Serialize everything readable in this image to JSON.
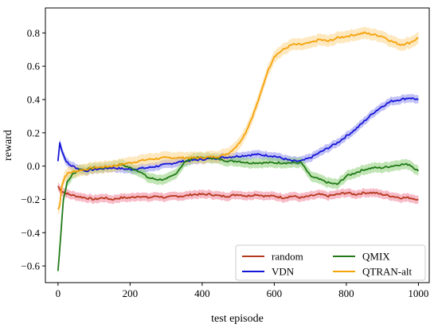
{
  "chart_data": {
    "type": "line",
    "title": "",
    "xlabel": "test episode",
    "ylabel": "reward",
    "xlim": [
      -35,
      1030
    ],
    "ylim": [
      -0.7,
      0.95
    ],
    "xticks": [
      0,
      200,
      400,
      600,
      800,
      1000
    ],
    "xtick_labels": [
      "0",
      "200",
      "400",
      "600",
      "800",
      "1000"
    ],
    "yticks": [
      -0.6,
      -0.4,
      -0.2,
      0.0,
      0.2,
      0.4,
      0.6,
      0.8
    ],
    "ytick_labels": [
      "−0.6",
      "−0.4",
      "−0.2",
      "0.0",
      "0.2",
      "0.4",
      "0.6",
      "0.8"
    ],
    "grid": false,
    "legend_position": "bottom-right",
    "series": [
      {
        "name": "random",
        "color": "#b5381c",
        "band_color": "#f2849a",
        "x": [
          0,
          5,
          10,
          20,
          30,
          50,
          75,
          100,
          125,
          150,
          175,
          200,
          225,
          250,
          275,
          300,
          325,
          350,
          375,
          400,
          425,
          450,
          475,
          500,
          525,
          550,
          575,
          600,
          625,
          650,
          675,
          700,
          725,
          750,
          775,
          800,
          825,
          850,
          875,
          900,
          925,
          950,
          975,
          1000
        ],
        "y": [
          -0.12,
          -0.14,
          -0.15,
          -0.16,
          -0.17,
          -0.18,
          -0.19,
          -0.2,
          -0.19,
          -0.2,
          -0.19,
          -0.19,
          -0.18,
          -0.19,
          -0.18,
          -0.19,
          -0.18,
          -0.18,
          -0.17,
          -0.17,
          -0.17,
          -0.18,
          -0.18,
          -0.17,
          -0.18,
          -0.17,
          -0.18,
          -0.18,
          -0.19,
          -0.18,
          -0.19,
          -0.18,
          -0.17,
          -0.18,
          -0.17,
          -0.16,
          -0.17,
          -0.16,
          -0.16,
          -0.17,
          -0.18,
          -0.19,
          -0.19,
          -0.2
        ],
        "band": 0.025
      },
      {
        "name": "VDN",
        "color": "#1515d8",
        "band_color": "#8f8fef",
        "x": [
          0,
          5,
          10,
          20,
          30,
          50,
          75,
          100,
          150,
          200,
          250,
          300,
          350,
          400,
          450,
          500,
          550,
          600,
          650,
          675,
          700,
          725,
          750,
          775,
          800,
          825,
          850,
          875,
          900,
          925,
          950,
          975,
          1000
        ],
        "y": [
          0.03,
          0.14,
          0.1,
          0.04,
          0.01,
          -0.01,
          -0.03,
          -0.02,
          -0.01,
          -0.02,
          -0.01,
          0.01,
          0.03,
          0.04,
          0.05,
          0.06,
          0.07,
          0.06,
          0.03,
          0.03,
          0.05,
          0.08,
          0.11,
          0.14,
          0.18,
          0.22,
          0.27,
          0.32,
          0.36,
          0.39,
          0.4,
          0.41,
          0.4
        ],
        "band": 0.025
      },
      {
        "name": "QMIX",
        "color": "#217a17",
        "band_color": "#8fd07a",
        "x": [
          0,
          3,
          8,
          15,
          25,
          40,
          60,
          80,
          100,
          125,
          150,
          175,
          200,
          225,
          250,
          275,
          300,
          325,
          350,
          375,
          400,
          425,
          450,
          475,
          500,
          525,
          550,
          575,
          600,
          625,
          650,
          675,
          700,
          725,
          750,
          775,
          800,
          825,
          850,
          875,
          900,
          925,
          950,
          975,
          1000
        ],
        "y": [
          -0.63,
          -0.55,
          -0.4,
          -0.2,
          -0.1,
          -0.05,
          -0.02,
          -0.02,
          -0.01,
          -0.01,
          0.0,
          0.01,
          -0.01,
          -0.03,
          -0.07,
          -0.08,
          -0.08,
          -0.05,
          0.02,
          0.05,
          0.05,
          0.05,
          0.04,
          0.03,
          0.03,
          0.02,
          0.02,
          0.02,
          0.02,
          0.02,
          0.02,
          0.02,
          -0.06,
          -0.08,
          -0.1,
          -0.11,
          -0.06,
          -0.04,
          -0.02,
          -0.01,
          -0.01,
          0.0,
          0.01,
          0.01,
          -0.03
        ],
        "band": 0.03
      },
      {
        "name": "QTRAN-alt",
        "color": "#f5a20b",
        "band_color": "#fcd68a",
        "x": [
          0,
          5,
          10,
          20,
          30,
          50,
          75,
          100,
          150,
          200,
          250,
          300,
          350,
          400,
          450,
          475,
          500,
          520,
          540,
          560,
          580,
          600,
          625,
          650,
          675,
          700,
          725,
          750,
          775,
          800,
          825,
          850,
          875,
          900,
          925,
          950,
          975,
          1000
        ],
        "y": [
          -0.26,
          -0.24,
          -0.12,
          -0.06,
          -0.04,
          -0.03,
          -0.02,
          -0.01,
          0.0,
          0.02,
          0.04,
          0.05,
          0.05,
          0.05,
          0.06,
          0.08,
          0.13,
          0.2,
          0.3,
          0.42,
          0.56,
          0.66,
          0.7,
          0.73,
          0.73,
          0.74,
          0.76,
          0.75,
          0.77,
          0.78,
          0.79,
          0.8,
          0.79,
          0.78,
          0.75,
          0.73,
          0.74,
          0.77
        ],
        "band": 0.035
      }
    ]
  }
}
